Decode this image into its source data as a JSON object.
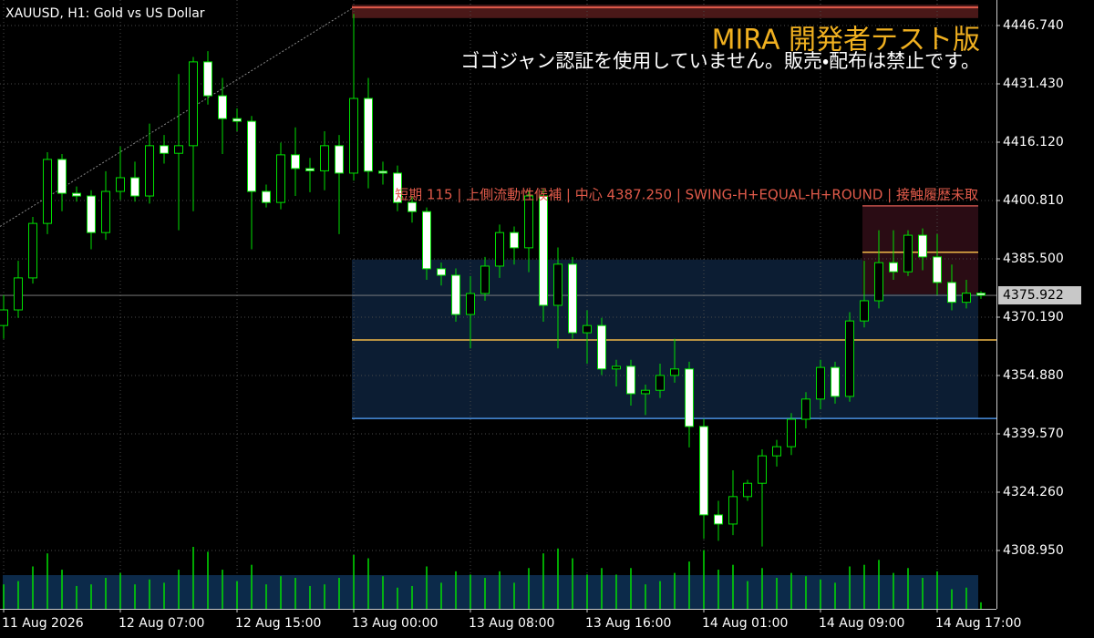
{
  "chart_data": {
    "type": "candlestick",
    "title": "XAUUSD, H1:  Gold vs US Dollar",
    "watermark": "MIRA 開発者テスト版",
    "notice": "ゴゴジャン認証を使用していません。販売・配布は禁止です。",
    "zone_label": "短期 115 | 上側流動性候補 | 中心 4387.250 | SWING-H+EQUAL-H+ROUND | 接触履歴未取",
    "categories": [
      "11 Aug 2026",
      null,
      null,
      null,
      null,
      null,
      null,
      null,
      "12 Aug 07:00",
      null,
      null,
      null,
      null,
      null,
      null,
      null,
      "12 Aug 15:00",
      null,
      null,
      null,
      null,
      null,
      null,
      null,
      "13 Aug 00:00",
      null,
      null,
      null,
      null,
      null,
      null,
      null,
      "13 Aug 08:00",
      null,
      null,
      null,
      null,
      null,
      null,
      null,
      "13 Aug 16:00",
      null,
      null,
      null,
      null,
      null,
      null,
      null,
      "14 Aug 01:00",
      null,
      null,
      null,
      null,
      null,
      null,
      null,
      "14 Aug 09:00",
      null,
      null,
      null,
      null,
      null,
      null,
      null,
      "14 Aug 17:00",
      null,
      null,
      null
    ],
    "open": [
      4368.0,
      4372.1,
      4380.5,
      4394.8,
      4411.6,
      4402.7,
      4402.0,
      4392.4,
      4403.2,
      4406.8,
      4402.0,
      4415.2,
      4413.2,
      4415.2,
      4437.2,
      4428.3,
      4422.3,
      4421.6,
      4403.2,
      4400.3,
      4412.8,
      4409.2,
      4408.6,
      4415.2,
      4408.0,
      4427.6,
      4408.5,
      4408.0,
      4400.3,
      4397.9,
      4382.9,
      4381.2,
      4370.9,
      4376.4,
      4383.6,
      4392.4,
      4388.4,
      4402.0,
      4373.3,
      4384.1,
      4366.1,
      4368.0,
      4356.6,
      4357.3,
      4350.1,
      4351.0,
      4354.9,
      4356.6,
      4341.5,
      4318.3,
      4315.9,
      4323.1,
      4326.6,
      4333.8,
      4336.2,
      4343.4,
      4348.7,
      4357.0,
      4349.4,
      4369.2,
      4374.5,
      4384.5,
      4382.1,
      4391.7,
      4386.0,
      4379.3,
      4374.1,
      4376.5
    ],
    "high": [
      4376.0,
      4385.0,
      4396.5,
      4413.5,
      4413.0,
      4404.5,
      4403.5,
      4408.5,
      4415.0,
      4411.0,
      4421.0,
      4418.0,
      4434.0,
      4438.5,
      4440.0,
      4433.0,
      4425.0,
      4423.0,
      4405.0,
      4416.0,
      4420.0,
      4412.0,
      4419.0,
      4418.0,
      4449.8,
      4433.0,
      4411.0,
      4410.0,
      4402.0,
      4399.0,
      4384.5,
      4383.0,
      4381.0,
      4386.0,
      4394.5,
      4394.0,
      4403.5,
      4404.0,
      4388.5,
      4386.0,
      4372.0,
      4370.0,
      4359.0,
      4359.0,
      4352.5,
      4358.0,
      4364.5,
      4358.5,
      4343.5,
      4322.0,
      4330.0,
      4327.5,
      4335.5,
      4338.0,
      4345.0,
      4350.5,
      4359.0,
      4358.5,
      4371.5,
      4385.0,
      4393.0,
      4393.0,
      4393.0,
      4393.5,
      4392.0,
      4384.0,
      4380.0,
      4377.0
    ],
    "low": [
      4364.5,
      4370.0,
      4379.0,
      4392.0,
      4398.0,
      4400.5,
      4388.0,
      4390.5,
      4401.0,
      4400.5,
      4400.0,
      4410.5,
      4393.0,
      4398.0,
      4426.0,
      4413.0,
      4419.0,
      4388.0,
      4399.0,
      4398.5,
      4402.0,
      4403.0,
      4403.5,
      4392.0,
      4406.0,
      4404.0,
      4405.0,
      4398.0,
      4395.0,
      4380.0,
      4378.5,
      4369.0,
      4362.0,
      4374.5,
      4380.5,
      4384.0,
      4382.0,
      4369.0,
      4362.0,
      4364.5,
      4358.0,
      4355.0,
      4352.0,
      4347.0,
      4344.5,
      4349.0,
      4353.0,
      4336.0,
      4312.0,
      4311.5,
      4313.0,
      4322.0,
      4310.0,
      4331.0,
      4334.0,
      4341.0,
      4346.0,
      4347.5,
      4348.0,
      4367.5,
      4372.5,
      4380.0,
      4381.0,
      4382.5,
      4376.0,
      4372.0,
      4372.5,
      4375.0
    ],
    "close": [
      4372.1,
      4380.5,
      4394.8,
      4411.6,
      4402.7,
      4402.0,
      4392.4,
      4403.2,
      4406.8,
      4402.0,
      4415.2,
      4413.2,
      4415.2,
      4437.2,
      4428.3,
      4422.3,
      4421.6,
      4403.2,
      4400.3,
      4412.8,
      4409.2,
      4408.6,
      4415.2,
      4408.0,
      4427.6,
      4408.5,
      4408.0,
      4400.3,
      4397.9,
      4382.9,
      4381.2,
      4370.9,
      4376.4,
      4383.6,
      4392.4,
      4388.4,
      4402.0,
      4373.3,
      4384.1,
      4366.1,
      4368.0,
      4356.6,
      4357.3,
      4350.1,
      4351.0,
      4354.9,
      4356.6,
      4341.5,
      4318.3,
      4315.9,
      4323.1,
      4326.6,
      4333.8,
      4336.2,
      4343.4,
      4348.7,
      4357.0,
      4349.4,
      4369.2,
      4374.5,
      4384.5,
      4382.1,
      4391.7,
      4386.0,
      4379.3,
      4374.1,
      4376.5,
      4375.922
    ],
    "volume": [
      1500,
      1700,
      2600,
      3400,
      2400,
      1400,
      1500,
      1900,
      2200,
      1500,
      1800,
      1600,
      2400,
      3800,
      3500,
      2400,
      1700,
      2700,
      1500,
      2000,
      1900,
      1400,
      1500,
      1900,
      3300,
      3100,
      2000,
      1300,
      1400,
      2600,
      1600,
      2300,
      2100,
      1900,
      2300,
      1600,
      2500,
      3400,
      3700,
      3100,
      2100,
      2500,
      2100,
      2500,
      1500,
      1700,
      2200,
      2900,
      3600,
      2400,
      2700,
      1700,
      2500,
      1900,
      2200,
      2000,
      1800,
      1600,
      2600,
      2700,
      3000,
      2200,
      2500,
      1900,
      2300,
      1200,
      1300,
      400
    ],
    "last_price": 4375.922,
    "zones": [
      {
        "from": 4452.2,
        "to": 4448.7,
        "color": "#4a1818"
      },
      {
        "from": 4385.3,
        "to": 4343.6,
        "color": "#0c1d33"
      },
      {
        "from": 4399.4,
        "to": 4376.2,
        "color": "#2a0c14"
      }
    ],
    "levels": [
      {
        "value": 4451.5,
        "color": "#e05a4a"
      },
      {
        "value": 4364.2,
        "color": "#f0b848"
      },
      {
        "value": 4343.6,
        "color": "#4a8fe0"
      },
      {
        "value": 4399.4,
        "color": "#c0504a"
      },
      {
        "value": 4387.25,
        "color": "#f0b848"
      }
    ],
    "trend": [
      4394.0,
      4451.5
    ],
    "ylim": [
      4293.64,
      4453.44
    ],
    "yticks": [
      {
        "value": 4446.74,
        "label": "4446.740"
      },
      {
        "value": 4431.43,
        "label": "4431.430"
      },
      {
        "value": 4416.12,
        "label": "4416.120"
      },
      {
        "value": 4400.81,
        "label": "4400.810"
      },
      {
        "value": 4385.5,
        "label": "4385.500"
      },
      {
        "value": 4370.19,
        "label": "4370.190"
      },
      {
        "value": 4354.88,
        "label": "4354.880"
      },
      {
        "value": 4339.57,
        "label": "4339.570"
      },
      {
        "value": 4324.26,
        "label": "4324.260"
      },
      {
        "value": 4308.95,
        "label": "4308.950"
      }
    ],
    "grid": true,
    "bull_color": "#00e000",
    "bear_color": "#ffffff"
  }
}
